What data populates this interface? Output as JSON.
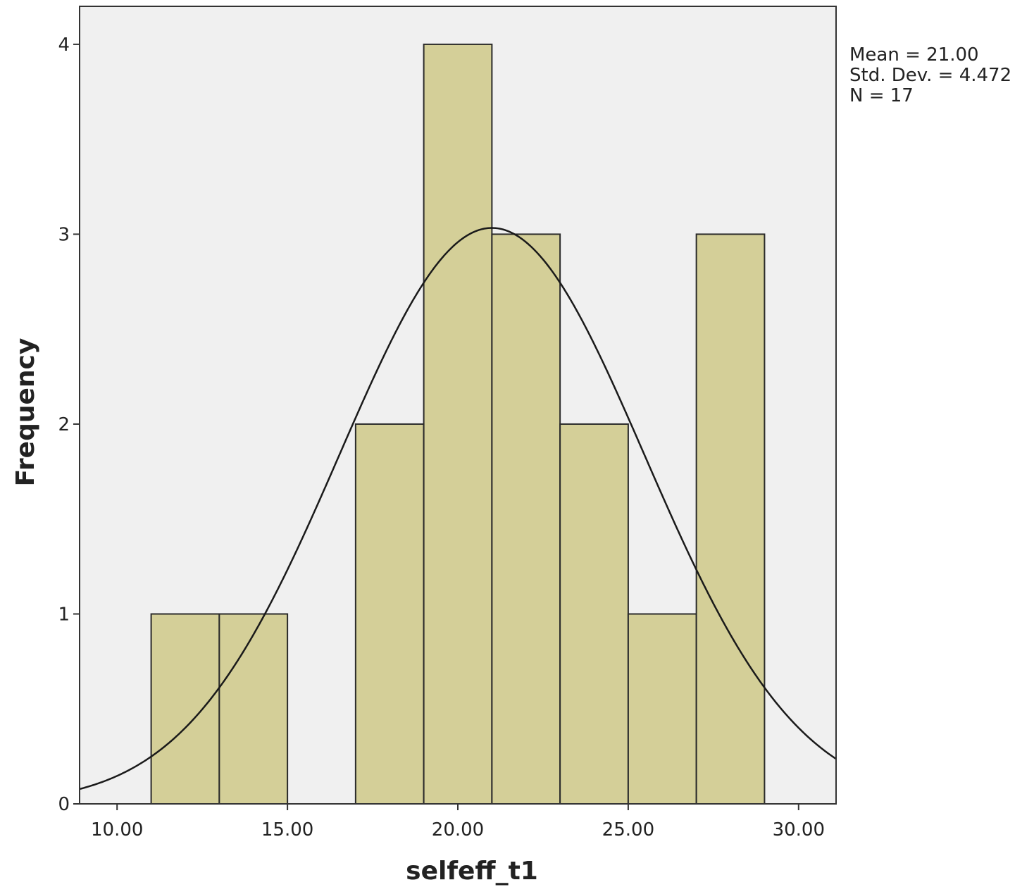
{
  "chart_data": {
    "type": "bar",
    "variant": "histogram",
    "xlabel": "selfeff_t1",
    "ylabel": "Frequency",
    "xlim": [
      8.9,
      31.1
    ],
    "ylim": [
      0,
      4.2
    ],
    "xticks": [
      10,
      15,
      20,
      25,
      30
    ],
    "xtick_labels": [
      "10.00",
      "15.00",
      "20.00",
      "25.00",
      "30.00"
    ],
    "yticks": [
      0,
      1,
      2,
      3,
      4
    ],
    "ytick_labels": [
      "0",
      "1",
      "2",
      "3",
      "4"
    ],
    "bins": [
      {
        "start": 11,
        "end": 13,
        "count": 1
      },
      {
        "start": 13,
        "end": 15,
        "count": 1
      },
      {
        "start": 15,
        "end": 17,
        "count": 0
      },
      {
        "start": 17,
        "end": 19,
        "count": 2
      },
      {
        "start": 19,
        "end": 21,
        "count": 4
      },
      {
        "start": 21,
        "end": 23,
        "count": 3
      },
      {
        "start": 23,
        "end": 25,
        "count": 2
      },
      {
        "start": 25,
        "end": 27,
        "count": 1
      },
      {
        "start": 27,
        "end": 29,
        "count": 3
      }
    ],
    "normal_curve": {
      "mean": 21.0,
      "sd": 4.472,
      "n": 17,
      "bin_width": 2
    },
    "stats_lines": [
      "Mean = 21.00",
      "Std. Dev. = 4.472",
      "N = 17"
    ],
    "grid": false,
    "colors": {
      "bar_fill": "#d4cf98",
      "bar_stroke": "#2a2a2a",
      "plot_bg": "#f0f0f0",
      "curve": "#1a1a1a"
    }
  }
}
